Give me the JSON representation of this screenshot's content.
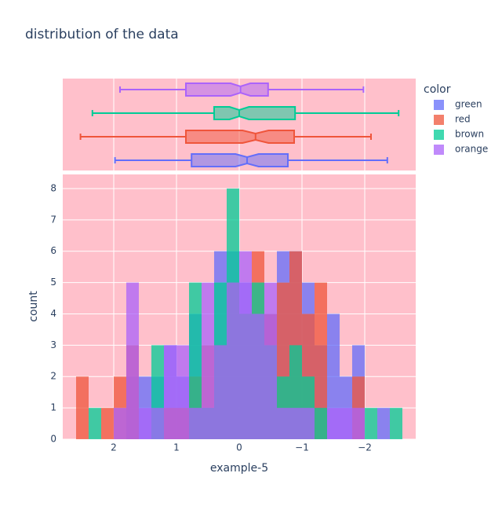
{
  "chart_data": {
    "type": "histogram",
    "title": "distribution of the data",
    "x_label": "example-5",
    "y_label": "count",
    "legend_title": "color",
    "bins": [
      2.6,
      2.4,
      2.2,
      2,
      1.8,
      1.6,
      1.4,
      1.2,
      1,
      0.8,
      0.6,
      0.4,
      0.2,
      0,
      -0.2,
      -0.4,
      -0.6,
      -0.8,
      -1,
      -1.2,
      -1.4,
      -1.6,
      -1.8,
      -2,
      -2.2,
      -2.4,
      -2.6
    ],
    "series": [
      {
        "name": "green",
        "color": "#636efa",
        "values": [
          0,
          0,
          0,
          0,
          2,
          2,
          2,
          3,
          2,
          4,
          1,
          6,
          6,
          5,
          4,
          4,
          6,
          6,
          5,
          3,
          4,
          2,
          3,
          0,
          1,
          0
        ],
        "box": {
          "min": -2.36,
          "q1": -0.775,
          "median": -0.125,
          "q3": 0.76,
          "max": 1.98
        }
      },
      {
        "name": "red",
        "color": "#EF553B",
        "values": [
          2,
          0,
          1,
          2,
          3,
          0,
          0,
          1,
          1,
          2,
          3,
          3,
          5,
          4,
          6,
          4,
          5,
          6,
          4,
          5,
          0,
          0,
          2,
          0,
          0,
          0
        ],
        "box": {
          "min": -2.1,
          "q1": -0.875,
          "median": -0.26,
          "q3": 0.85,
          "max": 2.53
        }
      },
      {
        "name": "brown",
        "color": "#00cc96",
        "values": [
          0,
          1,
          0,
          0,
          0,
          0,
          3,
          0,
          0,
          5,
          1,
          5,
          8,
          4,
          5,
          3,
          2,
          3,
          2,
          1,
          0,
          0,
          0,
          1,
          0,
          1
        ],
        "box": {
          "min": -2.54,
          "q1": -0.89,
          "median": 0.0,
          "q3": 0.4,
          "max": 2.34
        }
      },
      {
        "name": "orange",
        "color": "#ab63fa",
        "values": [
          0,
          0,
          0,
          1,
          5,
          1,
          1,
          3,
          3,
          1,
          5,
          3,
          5,
          6,
          4,
          5,
          1,
          1,
          1,
          0,
          1,
          1,
          1,
          0,
          0,
          0
        ],
        "box": {
          "min": -1.98,
          "q1": -0.46,
          "median": -0.02,
          "q3": 0.85,
          "max": 1.9
        }
      }
    ],
    "xlim": [
      2.8125,
      -2.8125
    ],
    "xticks": [
      2,
      1,
      0,
      {
        "value": -1,
        "label": "−1"
      },
      {
        "value": -2,
        "label": "−2"
      }
    ],
    "ylim": [
      0,
      8.45
    ],
    "yticks": [
      0,
      1,
      2,
      3,
      4,
      5,
      6,
      7,
      8
    ],
    "grid": true,
    "background": "pink",
    "legend_position": "right"
  }
}
